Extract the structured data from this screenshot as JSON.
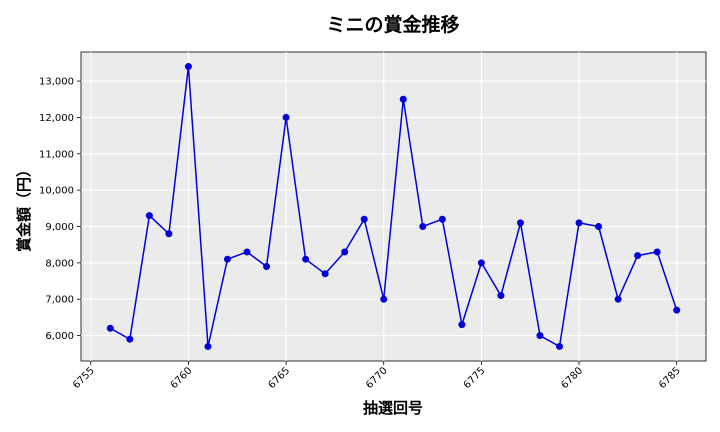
{
  "chart_data": {
    "type": "line",
    "title": "ミニの賞金推移",
    "xlabel": "抽選回号",
    "ylabel": "賞金額（円）",
    "xlim": [
      6754.5,
      6786.5
    ],
    "ylim": [
      5300,
      13800
    ],
    "xticks": [
      6755,
      6760,
      6765,
      6770,
      6775,
      6780,
      6785
    ],
    "yticks": [
      6000,
      7000,
      8000,
      9000,
      10000,
      11000,
      12000,
      13000
    ],
    "ytick_labels": [
      "6,000",
      "7,000",
      "8,000",
      "9,000",
      "10,000",
      "11,000",
      "12,000",
      "13,000"
    ],
    "grid": true,
    "series": [
      {
        "color": "#0000dd",
        "x": [
          6756,
          6757,
          6758,
          6759,
          6760,
          6761,
          6762,
          6763,
          6764,
          6765,
          6766,
          6767,
          6768,
          6769,
          6770,
          6771,
          6772,
          6773,
          6774,
          6775,
          6776,
          6777,
          6778,
          6779,
          6780,
          6781,
          6782,
          6783,
          6784,
          6785
        ],
        "y": [
          6200,
          5900,
          9300,
          8800,
          13400,
          5700,
          8100,
          8300,
          7900,
          12000,
          8100,
          7700,
          8300,
          9200,
          7000,
          12500,
          9000,
          9200,
          6300,
          8000,
          7100,
          9100,
          6000,
          5700,
          9100,
          9000,
          7000,
          8200,
          8300,
          6700
        ]
      }
    ]
  },
  "colors": {
    "plot_background": "#ebebeb",
    "grid": "#ffffff",
    "line": "#0000dd"
  }
}
